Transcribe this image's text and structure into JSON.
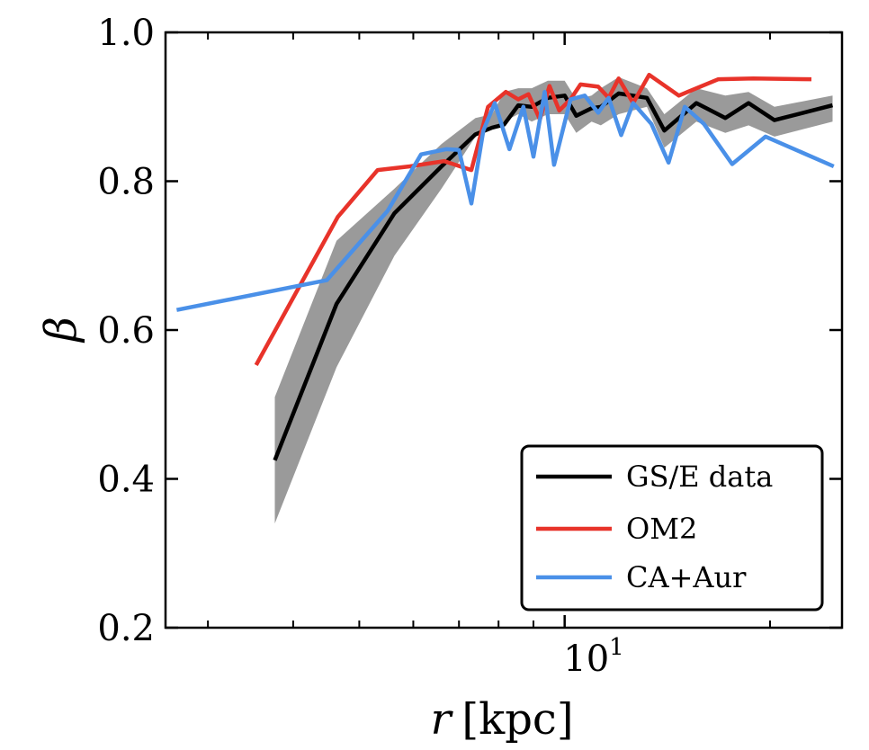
{
  "chart_data": {
    "type": "line",
    "title": "",
    "xlabel": "r [kpc]",
    "xlabel_var": "r",
    "xlabel_unit": "[kpc]",
    "ylabel": "β",
    "xscale": "log",
    "xlim": [
      2.6,
      25.5
    ],
    "ylim": [
      0.2,
      1.0
    ],
    "yticks": [
      0.2,
      0.4,
      0.6,
      0.8,
      1.0
    ],
    "ytick_labels": [
      "0.2",
      "0.4",
      "0.6",
      "0.8",
      "1.0"
    ],
    "xtick_major": 10,
    "xtick_label_base": "10",
    "xtick_label_exp": "1",
    "xtick_minor": [
      3,
      4,
      5,
      6,
      7,
      8,
      9,
      20
    ],
    "grid": false,
    "legend_position": "lower-right",
    "band": {
      "x": [
        3.76,
        4.63,
        5.63,
        6.6,
        7.4,
        7.83,
        8.15,
        8.55,
        8.95,
        9.45,
        10.0,
        10.4,
        10.95,
        11.3,
        12.0,
        13.2,
        14.0,
        15.6,
        17.2,
        18.6,
        20.3,
        24.7
      ],
      "lower": [
        0.34,
        0.55,
        0.7,
        0.79,
        0.86,
        0.87,
        0.88,
        0.89,
        0.88,
        0.89,
        0.89,
        0.865,
        0.88,
        0.875,
        0.89,
        0.9,
        0.845,
        0.88,
        0.865,
        0.875,
        0.86,
        0.88
      ],
      "upper": [
        0.51,
        0.72,
        0.79,
        0.85,
        0.885,
        0.89,
        0.92,
        0.925,
        0.925,
        0.935,
        0.935,
        0.91,
        0.915,
        0.925,
        0.94,
        0.925,
        0.89,
        0.925,
        0.915,
        0.92,
        0.9,
        0.915
      ]
    },
    "series": [
      {
        "name": "GS/E data",
        "color": "#000000",
        "x": [
          3.76,
          4.63,
          5.63,
          6.6,
          7.4,
          7.83,
          8.15,
          8.55,
          8.95,
          9.45,
          10.0,
          10.4,
          10.95,
          11.3,
          12.0,
          13.2,
          14.0,
          15.6,
          17.2,
          18.6,
          20.3,
          24.7
        ],
        "y": [
          0.425,
          0.635,
          0.757,
          0.82,
          0.863,
          0.872,
          0.876,
          0.902,
          0.9,
          0.912,
          0.915,
          0.888,
          0.898,
          0.9,
          0.918,
          0.912,
          0.868,
          0.905,
          0.885,
          0.905,
          0.882,
          0.902
        ]
      },
      {
        "name": "OM2",
        "color": "#e8332a",
        "x": [
          3.53,
          4.65,
          5.32,
          5.93,
          6.66,
          7.3,
          7.72,
          8.2,
          8.55,
          8.85,
          9.2,
          9.5,
          9.82,
          10.2,
          10.55,
          11.2,
          11.6,
          12.0,
          12.6,
          13.3,
          14.7,
          16.8,
          18.9,
          23.0
        ],
        "y": [
          0.553,
          0.752,
          0.815,
          0.82,
          0.827,
          0.815,
          0.9,
          0.92,
          0.91,
          0.917,
          0.883,
          0.928,
          0.895,
          0.91,
          0.93,
          0.927,
          0.912,
          0.938,
          0.905,
          0.943,
          0.915,
          0.937,
          0.938,
          0.937
        ]
      },
      {
        "name": "CA+Aur",
        "color": "#4a90e8",
        "x": [
          2.7,
          4.48,
          5.5,
          6.16,
          6.7,
          7.0,
          7.3,
          7.6,
          7.9,
          8.3,
          8.7,
          9.0,
          9.35,
          9.65,
          10.2,
          10.7,
          11.2,
          11.6,
          12.1,
          12.6,
          13.4,
          14.2,
          15.0,
          16.0,
          17.6,
          19.7,
          24.8
        ],
        "y": [
          0.627,
          0.667,
          0.76,
          0.836,
          0.843,
          0.842,
          0.77,
          0.868,
          0.905,
          0.843,
          0.9,
          0.833,
          0.92,
          0.822,
          0.91,
          0.915,
          0.892,
          0.912,
          0.862,
          0.905,
          0.877,
          0.825,
          0.9,
          0.877,
          0.823,
          0.86,
          0.82
        ]
      }
    ]
  }
}
